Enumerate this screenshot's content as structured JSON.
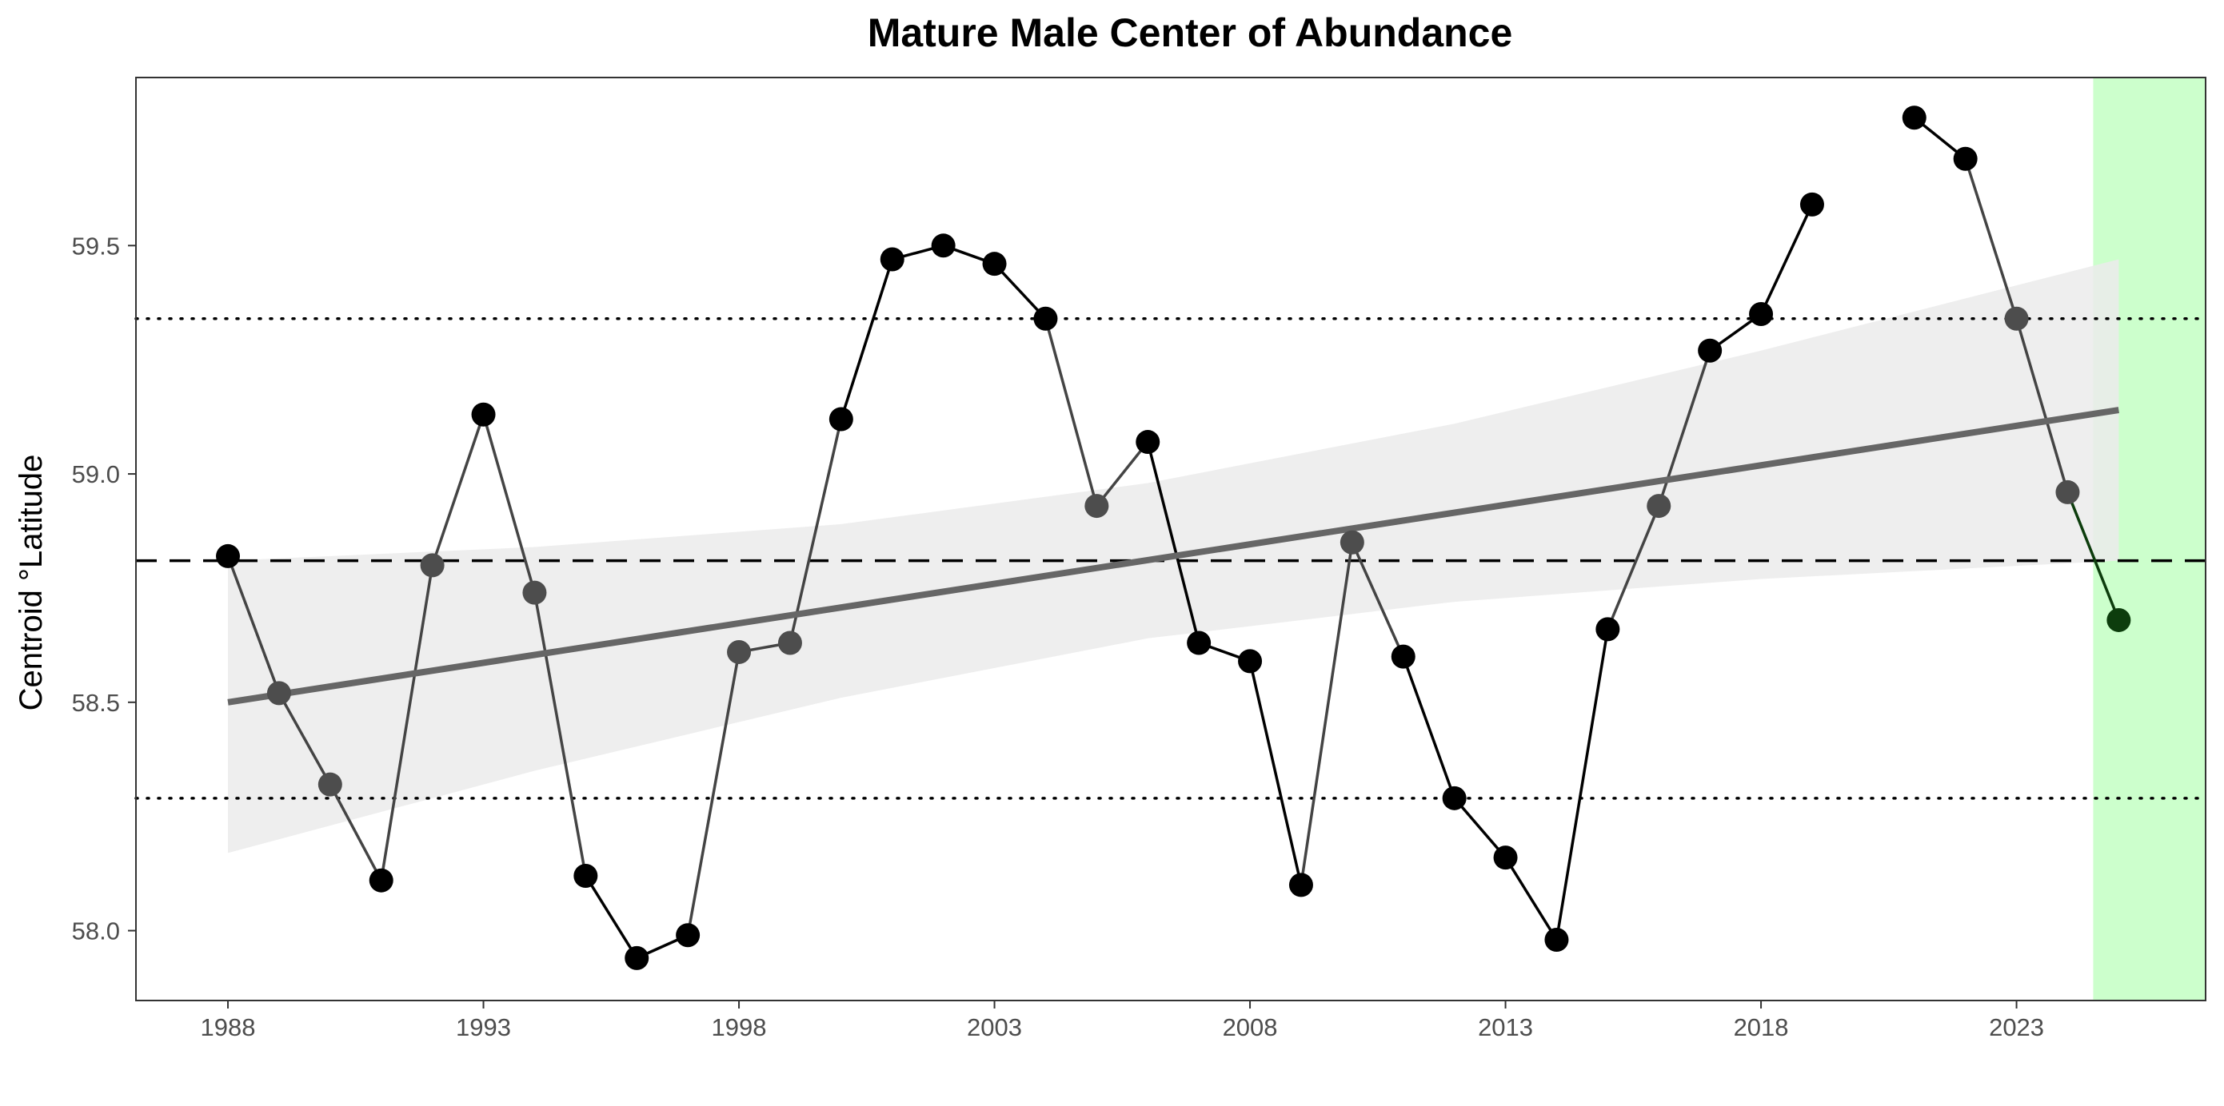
{
  "chart_data": {
    "type": "line",
    "title": "Mature Male Center of Abundance",
    "xlabel": "",
    "ylabel": "Centroid °Latitude",
    "xlim": [
      1986.2,
      2026.7
    ],
    "ylim": [
      57.847,
      59.868
    ],
    "x_ticks": [
      1988,
      1993,
      1998,
      2003,
      2008,
      2013,
      2018,
      2023
    ],
    "x_tick_labels": [
      "1988",
      "1993",
      "1998",
      "2003",
      "2008",
      "2013",
      "2018",
      "2023"
    ],
    "y_ticks": [
      58.0,
      58.5,
      59.0,
      59.5
    ],
    "y_tick_labels": [
      "58.0",
      "58.5",
      "59.0",
      "59.5"
    ],
    "grid": false,
    "series": [
      {
        "values": [
          {
            "x": 1988,
            "y": 58.82,
            "tone": "high"
          },
          {
            "x": 1989,
            "y": 58.52,
            "tone": "mid"
          },
          {
            "x": 1990,
            "y": 58.32,
            "tone": "mid"
          },
          {
            "x": 1991,
            "y": 58.11,
            "tone": "high"
          },
          {
            "x": 1992,
            "y": 58.8,
            "tone": "mid"
          },
          {
            "x": 1993,
            "y": 59.13,
            "tone": "high"
          },
          {
            "x": 1994,
            "y": 58.74,
            "tone": "mid"
          },
          {
            "x": 1995,
            "y": 58.12,
            "tone": "high"
          },
          {
            "x": 1996,
            "y": 57.94,
            "tone": "high"
          },
          {
            "x": 1997,
            "y": 57.99,
            "tone": "high"
          },
          {
            "x": 1998,
            "y": 58.61,
            "tone": "mid"
          },
          {
            "x": 1999,
            "y": 58.63,
            "tone": "mid"
          },
          {
            "x": 2000,
            "y": 59.12,
            "tone": "high"
          },
          {
            "x": 2001,
            "y": 59.47,
            "tone": "high"
          },
          {
            "x": 2002,
            "y": 59.5,
            "tone": "high"
          },
          {
            "x": 2003,
            "y": 59.46,
            "tone": "high"
          },
          {
            "x": 2004,
            "y": 59.34,
            "tone": "high"
          },
          {
            "x": 2005,
            "y": 58.93,
            "tone": "mid"
          },
          {
            "x": 2006,
            "y": 59.07,
            "tone": "high"
          },
          {
            "x": 2007,
            "y": 58.63,
            "tone": "high"
          },
          {
            "x": 2008,
            "y": 58.59,
            "tone": "high"
          },
          {
            "x": 2009,
            "y": 58.1,
            "tone": "high"
          },
          {
            "x": 2010,
            "y": 58.85,
            "tone": "mid"
          },
          {
            "x": 2011,
            "y": 58.6,
            "tone": "high"
          },
          {
            "x": 2012,
            "y": 58.29,
            "tone": "high"
          },
          {
            "x": 2013,
            "y": 58.16,
            "tone": "high"
          },
          {
            "x": 2014,
            "y": 57.98,
            "tone": "high"
          },
          {
            "x": 2015,
            "y": 58.66,
            "tone": "high"
          },
          {
            "x": 2016,
            "y": 58.93,
            "tone": "mid"
          },
          {
            "x": 2017,
            "y": 59.27,
            "tone": "high"
          },
          {
            "x": 2018,
            "y": 59.35,
            "tone": "high"
          },
          {
            "x": 2019,
            "y": 59.59,
            "tone": "high"
          },
          {
            "x": 2021,
            "y": 59.78,
            "tone": "high"
          },
          {
            "x": 2022,
            "y": 59.69,
            "tone": "high"
          },
          {
            "x": 2023,
            "y": 59.34,
            "tone": "mid"
          },
          {
            "x": 2024,
            "y": 58.96,
            "tone": "mid"
          },
          {
            "x": 2025,
            "y": 58.68,
            "tone": "current"
          }
        ]
      }
    ],
    "trend": {
      "x_range": [
        1988,
        2025
      ],
      "y_start": 58.5,
      "y_end": 59.14,
      "ci_lower": [
        {
          "x": 1988,
          "y": 58.17
        },
        {
          "x": 1994,
          "y": 58.35
        },
        {
          "x": 2000,
          "y": 58.51
        },
        {
          "x": 2006,
          "y": 58.64
        },
        {
          "x": 2012,
          "y": 58.72
        },
        {
          "x": 2018,
          "y": 58.77
        },
        {
          "x": 2025,
          "y": 58.81
        }
      ],
      "ci_upper": [
        {
          "x": 1988,
          "y": 58.81
        },
        {
          "x": 1994,
          "y": 58.84
        },
        {
          "x": 2000,
          "y": 58.89
        },
        {
          "x": 2006,
          "y": 58.98
        },
        {
          "x": 2012,
          "y": 59.11
        },
        {
          "x": 2018,
          "y": 59.27
        },
        {
          "x": 2025,
          "y": 59.47
        }
      ]
    },
    "mean_line": 58.81,
    "sd_upper_line": 59.34,
    "sd_lower_line": 58.29,
    "highlight_x_range": [
      2024.5,
      2026.7
    ],
    "colors": {
      "line_high": "#000000",
      "line_mid": "#444444",
      "point_high": "#000000",
      "point_mid": "#4d4d4d",
      "point_current": "#0d3d0d",
      "line_current": "#0d3d0d",
      "trend": "#666666",
      "ci_band": "#ebebeb",
      "highlight": "#ccffcc",
      "reference": "#000000",
      "panel_border": "#333333",
      "tick_text": "#4d4d4d"
    }
  }
}
